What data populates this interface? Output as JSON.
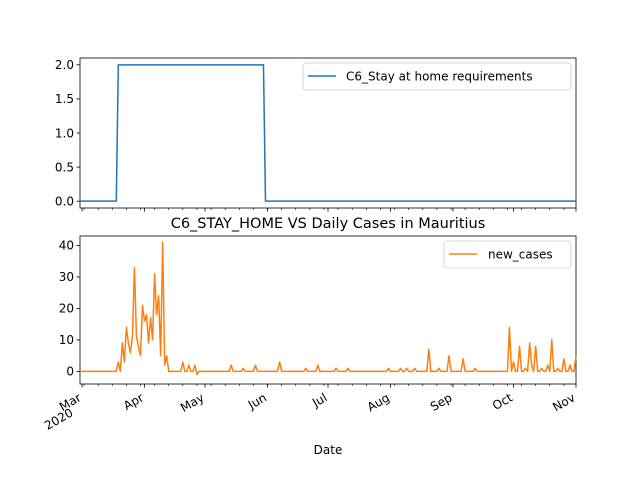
{
  "chart_data": [
    {
      "type": "line",
      "title": "",
      "xlabel": "",
      "ylabel": "",
      "ylim": [
        -0.1,
        2.1
      ],
      "yticks": [
        0.0,
        0.5,
        1.0,
        1.5,
        2.0
      ],
      "ytick_labels": [
        "0.0",
        "0.5",
        "1.0",
        "1.5",
        "2.0"
      ],
      "xlim": [
        "2020-02-29",
        "2020-11-01"
      ],
      "grid": false,
      "legend_position": "top-right",
      "series": [
        {
          "name": "C6_Stay at home requirements",
          "color": "#1f77b4",
          "x": [
            "2020-02-29",
            "2020-03-18",
            "2020-03-19",
            "2020-05-30",
            "2020-05-31",
            "2020-11-01"
          ],
          "y": [
            0,
            0,
            2,
            2,
            0,
            0
          ]
        }
      ]
    },
    {
      "type": "line",
      "title": "C6_STAY_HOME VS Daily Cases in Mauritius",
      "xlabel": "Date",
      "ylabel": "",
      "ylim": [
        -4,
        43
      ],
      "yticks": [
        0,
        10,
        20,
        30,
        40
      ],
      "ytick_labels": [
        "0",
        "10",
        "20",
        "30",
        "40"
      ],
      "xlim": [
        "2020-02-29",
        "2020-11-01"
      ],
      "xticks": [
        {
          "date": "2020-03-01",
          "label": "Mar",
          "sublabel": "2020"
        },
        {
          "date": "2020-04-01",
          "label": "Apr"
        },
        {
          "date": "2020-05-01",
          "label": "May"
        },
        {
          "date": "2020-06-01",
          "label": "Jun"
        },
        {
          "date": "2020-07-01",
          "label": "Jul"
        },
        {
          "date": "2020-08-01",
          "label": "Aug"
        },
        {
          "date": "2020-09-01",
          "label": "Sep"
        },
        {
          "date": "2020-10-01",
          "label": "Oct"
        },
        {
          "date": "2020-11-01",
          "label": "Nov"
        }
      ],
      "grid": false,
      "legend_position": "top-right",
      "series": [
        {
          "name": "new_cases",
          "color": "#ff7f0e",
          "x": [
            "2020-02-29",
            "2020-03-18",
            "2020-03-19",
            "2020-03-20",
            "2020-03-21",
            "2020-03-22",
            "2020-03-23",
            "2020-03-24",
            "2020-03-25",
            "2020-03-26",
            "2020-03-27",
            "2020-03-28",
            "2020-03-29",
            "2020-03-30",
            "2020-03-31",
            "2020-04-01",
            "2020-04-02",
            "2020-04-03",
            "2020-04-04",
            "2020-04-05",
            "2020-04-06",
            "2020-04-07",
            "2020-04-08",
            "2020-04-09",
            "2020-04-10",
            "2020-04-11",
            "2020-04-12",
            "2020-04-13",
            "2020-04-14",
            "2020-04-15",
            "2020-04-16",
            "2020-04-19",
            "2020-04-20",
            "2020-04-21",
            "2020-04-22",
            "2020-04-23",
            "2020-04-24",
            "2020-04-25",
            "2020-04-26",
            "2020-04-27",
            "2020-04-28",
            "2020-04-29",
            "2020-05-13",
            "2020-05-14",
            "2020-05-15",
            "2020-05-19",
            "2020-05-20",
            "2020-05-21",
            "2020-05-25",
            "2020-05-26",
            "2020-05-27",
            "2020-06-06",
            "2020-06-07",
            "2020-06-08",
            "2020-06-09",
            "2020-06-19",
            "2020-06-20",
            "2020-06-21",
            "2020-06-25",
            "2020-06-26",
            "2020-06-27",
            "2020-07-04",
            "2020-07-05",
            "2020-07-06",
            "2020-07-10",
            "2020-07-11",
            "2020-07-12",
            "2020-07-30",
            "2020-07-31",
            "2020-08-01",
            "2020-08-05",
            "2020-08-06",
            "2020-08-07",
            "2020-08-08",
            "2020-08-09",
            "2020-08-10",
            "2020-08-12",
            "2020-08-13",
            "2020-08-14",
            "2020-08-19",
            "2020-08-20",
            "2020-08-21",
            "2020-08-24",
            "2020-08-25",
            "2020-08-26",
            "2020-08-29",
            "2020-08-30",
            "2020-08-31",
            "2020-09-05",
            "2020-09-06",
            "2020-09-07",
            "2020-09-11",
            "2020-09-12",
            "2020-09-13",
            "2020-09-28",
            "2020-09-29",
            "2020-09-30",
            "2020-10-01",
            "2020-10-02",
            "2020-10-03",
            "2020-10-04",
            "2020-10-05",
            "2020-10-06",
            "2020-10-07",
            "2020-10-08",
            "2020-10-09",
            "2020-10-10",
            "2020-10-11",
            "2020-10-12",
            "2020-10-13",
            "2020-10-14",
            "2020-10-15",
            "2020-10-16",
            "2020-10-17",
            "2020-10-18",
            "2020-10-19",
            "2020-10-20",
            "2020-10-21",
            "2020-10-22",
            "2020-10-23",
            "2020-10-24",
            "2020-10-25",
            "2020-10-26",
            "2020-10-27",
            "2020-10-28",
            "2020-10-29",
            "2020-10-30",
            "2020-10-31",
            "2020-11-01"
          ],
          "y": [
            0,
            0,
            3,
            0,
            9,
            3,
            14,
            9,
            6,
            11,
            33,
            11,
            8,
            5,
            21,
            16,
            18,
            9,
            17,
            10,
            31,
            18,
            24,
            5,
            41,
            2,
            5,
            0,
            0,
            0,
            0,
            0,
            3,
            0,
            0,
            2,
            0,
            0,
            2,
            -1,
            0,
            0,
            0,
            2,
            0,
            0,
            1,
            0,
            0,
            2,
            0,
            0,
            3,
            0,
            0,
            0,
            1,
            0,
            0,
            2,
            0,
            0,
            1,
            0,
            0,
            1,
            0,
            0,
            1,
            0,
            0,
            1,
            0,
            0,
            1,
            0,
            0,
            1,
            0,
            0,
            7,
            0,
            0,
            1,
            0,
            0,
            5,
            0,
            0,
            4,
            0,
            0,
            1,
            0,
            0,
            14,
            0,
            3,
            0,
            0,
            8,
            0,
            0,
            1,
            0,
            9,
            2,
            0,
            8,
            0,
            0,
            1,
            0,
            0,
            2,
            0,
            10,
            0,
            0,
            1,
            0,
            0,
            4,
            0,
            0,
            2,
            0,
            0,
            5
          ]
        }
      ]
    }
  ]
}
